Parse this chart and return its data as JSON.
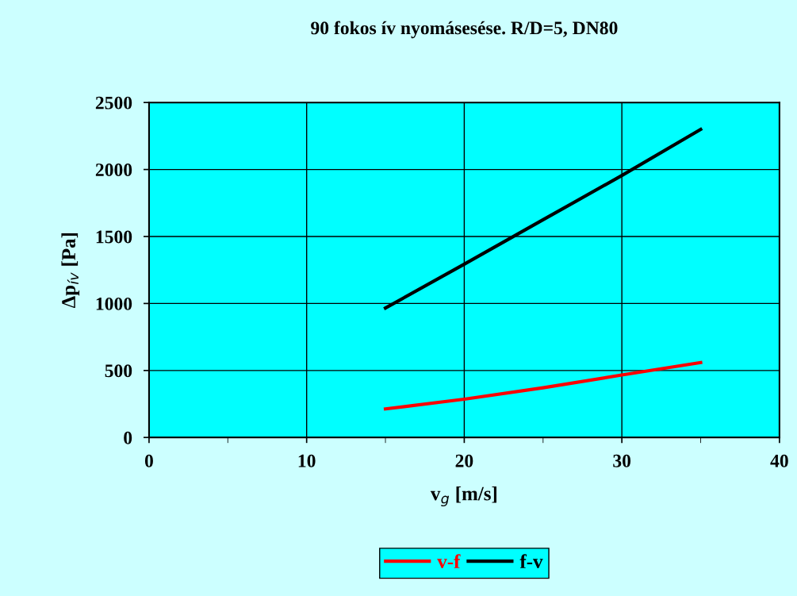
{
  "chart_data": {
    "type": "line",
    "title": "90 fokos ív nyomásesése. R/D=5, DN80",
    "xlabel": "v$_{g}$ [m/s]",
    "ylabel": "Δp$_{ív}$ [Pa]",
    "xlim": [
      0,
      40
    ],
    "xticks": [
      0,
      10,
      20,
      30,
      40
    ],
    "ylim": [
      0,
      2500
    ],
    "yticks": [
      0,
      500,
      1000,
      1500,
      2000,
      2500
    ],
    "grid": true,
    "legend": "bottom",
    "marker": "none",
    "line_style": "solid",
    "series": [
      {
        "name": "v-f",
        "color": "#ff0000",
        "x": [
          15,
          20,
          25,
          30,
          35
        ],
        "values": [
          213,
          286,
          371,
          466,
          559
        ]
      },
      {
        "name": "f-v",
        "color": "#000000",
        "x": [
          15,
          20,
          25,
          30,
          35
        ],
        "values": [
          966,
          1293,
          1625,
          1955,
          2299
        ]
      }
    ]
  }
}
